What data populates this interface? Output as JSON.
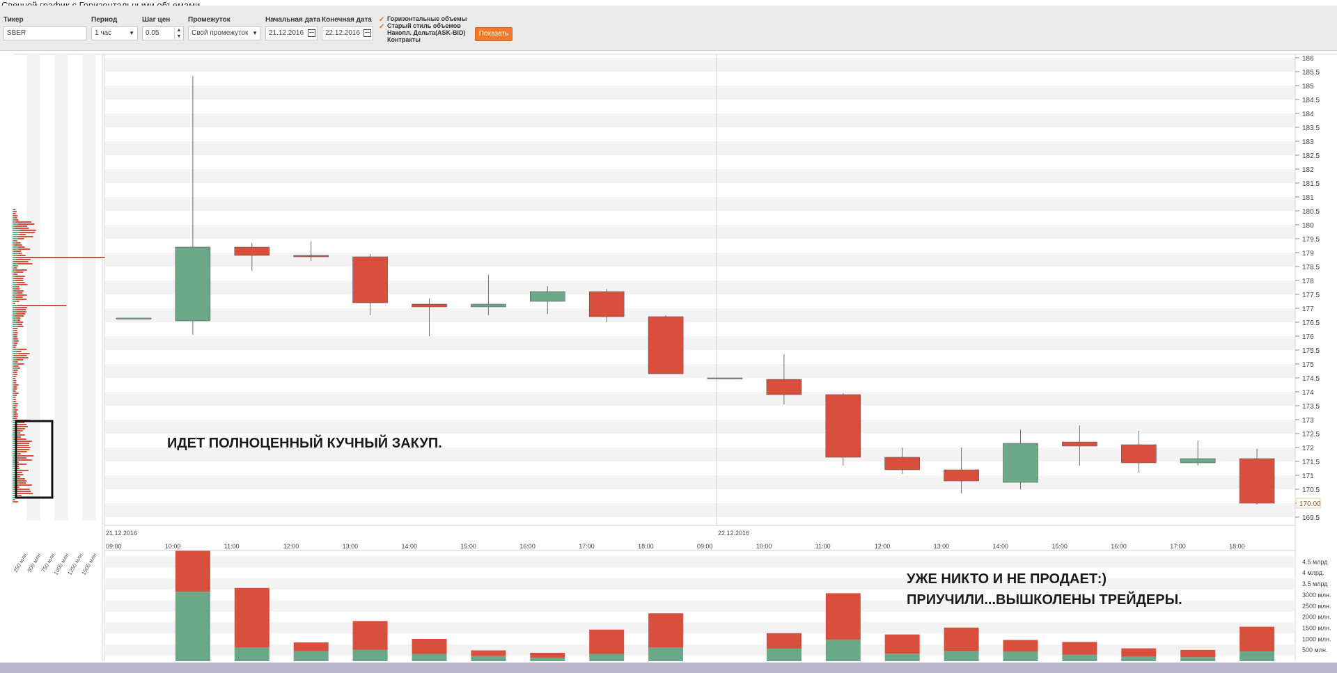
{
  "page_title": "Свечной график с Горизонтальными объемами",
  "toolbar": {
    "ticker_label": "Тикер",
    "ticker_value": "SBER",
    "period_label": "Период",
    "period_value": "1 час",
    "step_label": "Шаг цен",
    "step_value": "0.05",
    "range_label": "Промежуток",
    "range_value": "Свой промежуток",
    "start_label": "Начальная дата",
    "start_value": "21.12.2016",
    "end_label": "Конечная дата",
    "end_value": "22.12.2016",
    "options": [
      {
        "label": "Горизонтальные объемы",
        "checked": true
      },
      {
        "label": "Старый стиль объемов",
        "checked": true
      },
      {
        "label": "Накопл. Дельта(ASK-BID)",
        "checked": false
      },
      {
        "label": "Контракты",
        "checked": false
      }
    ],
    "show_label": "Показать"
  },
  "colors": {
    "up": "#6aa887",
    "down": "#d94f3d",
    "accent": "#f07a2a"
  },
  "chart_data": {
    "type": "candlestick",
    "price_axis": {
      "min": 169.5,
      "max": 186,
      "step": 0.5
    },
    "price_ticks": [
      "169.5",
      "170",
      "170.5",
      "171",
      "171.5",
      "172",
      "172.5",
      "173",
      "173.5",
      "174",
      "174.5",
      "175",
      "175.5",
      "176",
      "176.5",
      "177",
      "177.5",
      "178",
      "178.5",
      "179",
      "179.5",
      "180",
      "180.5",
      "181",
      "181.5",
      "182",
      "182.5",
      "183",
      "183.5",
      "184",
      "184.5",
      "185",
      "185.5",
      "186"
    ],
    "last_price_label": "170.00",
    "last_price": 170.0,
    "date_labels": [
      "21.12.2016",
      "22.12.2016"
    ],
    "time_labels": [
      "09:00",
      "10:00",
      "11:00",
      "12:00",
      "13:00",
      "14:00",
      "15:00",
      "16:00",
      "17:00",
      "18:00",
      "09:00",
      "10:00",
      "11:00",
      "12:00",
      "13:00",
      "14:00",
      "15:00",
      "16:00",
      "17:00",
      "18:00"
    ],
    "candles": [
      {
        "o": 176.65,
        "h": 176.65,
        "l": 176.65,
        "c": 176.65
      },
      {
        "o": 176.55,
        "h": 185.35,
        "l": 176.05,
        "c": 179.2
      },
      {
        "o": 179.2,
        "h": 179.35,
        "l": 178.35,
        "c": 178.9
      },
      {
        "o": 178.9,
        "h": 179.4,
        "l": 178.7,
        "c": 178.85
      },
      {
        "o": 178.85,
        "h": 178.95,
        "l": 176.75,
        "c": 177.2
      },
      {
        "o": 177.15,
        "h": 177.35,
        "l": 176.0,
        "c": 177.05
      },
      {
        "o": 177.05,
        "h": 178.2,
        "l": 176.75,
        "c": 177.15
      },
      {
        "o": 177.25,
        "h": 177.8,
        "l": 176.8,
        "c": 177.6
      },
      {
        "o": 177.6,
        "h": 177.7,
        "l": 176.5,
        "c": 176.7
      },
      {
        "o": 176.7,
        "h": 176.75,
        "l": 174.65,
        "c": 174.65
      },
      {
        "o": 174.5,
        "h": 174.5,
        "l": 174.5,
        "c": 174.5
      },
      {
        "o": 174.45,
        "h": 175.35,
        "l": 173.55,
        "c": 173.9
      },
      {
        "o": 173.9,
        "h": 173.95,
        "l": 171.35,
        "c": 171.65
      },
      {
        "o": 171.65,
        "h": 172.0,
        "l": 171.05,
        "c": 171.2
      },
      {
        "o": 171.2,
        "h": 172.0,
        "l": 170.35,
        "c": 170.8
      },
      {
        "o": 170.75,
        "h": 172.65,
        "l": 170.5,
        "c": 172.15
      },
      {
        "o": 172.2,
        "h": 172.8,
        "l": 171.35,
        "c": 172.05
      },
      {
        "o": 172.1,
        "h": 172.6,
        "l": 171.1,
        "c": 171.45
      },
      {
        "o": 171.45,
        "h": 172.25,
        "l": 171.35,
        "c": 171.6
      },
      {
        "o": 171.6,
        "h": 171.95,
        "l": 169.95,
        "c": 170.0
      }
    ],
    "volume_axis_labels": [
      "500 млн.",
      "1000 млн.",
      "1500 млн.",
      "2000 млн.",
      "2500 млн.",
      "3000 млн.",
      "3.5 млрд",
      "4 млрд.",
      "4.5 млрд"
    ],
    "volumes": [
      {
        "buy": 0,
        "sell": 0
      },
      {
        "buy": 3150,
        "sell": 1850
      },
      {
        "buy": 620,
        "sell": 2700
      },
      {
        "buy": 450,
        "sell": 400
      },
      {
        "buy": 520,
        "sell": 1300
      },
      {
        "buy": 330,
        "sell": 680
      },
      {
        "buy": 230,
        "sell": 260
      },
      {
        "buy": 160,
        "sell": 220
      },
      {
        "buy": 330,
        "sell": 1100
      },
      {
        "buy": 620,
        "sell": 1550
      },
      {
        "buy": 0,
        "sell": 0
      },
      {
        "buy": 570,
        "sell": 700
      },
      {
        "buy": 980,
        "sell": 2100
      },
      {
        "buy": 340,
        "sell": 870
      },
      {
        "buy": 460,
        "sell": 1060
      },
      {
        "buy": 430,
        "sell": 530
      },
      {
        "buy": 300,
        "sell": 570
      },
      {
        "buy": 200,
        "sell": 380
      },
      {
        "buy": 180,
        "sell": 330
      },
      {
        "buy": 440,
        "sell": 1120
      }
    ],
    "profile_axis_labels": [
      "250 млн.",
      "500 млн.",
      "750 млн.",
      "1000 млн.",
      "1250 млн.",
      "1500 млн."
    ],
    "annotations": [
      "ИДЕТ ПОЛНОЦЕННЫЙ КУЧНЫЙ ЗАКУП.",
      "УЖЕ НИКТО И НЕ ПРОДАЕТ:)",
      "ПРИУЧИЛИ...ВЫШКОЛЕНЫ ТРЕЙДЕРЫ."
    ]
  }
}
